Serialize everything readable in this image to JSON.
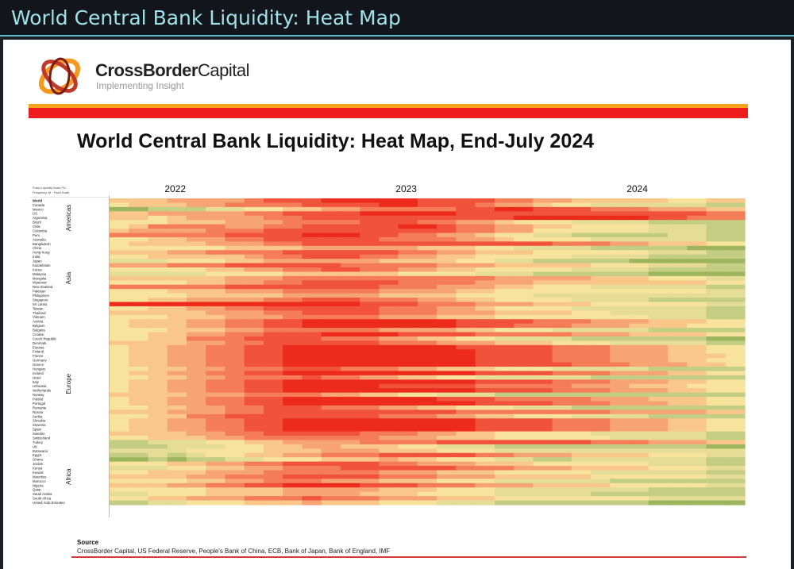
{
  "window": {
    "title": "World Central Bank Liquidity: Heat Map"
  },
  "brand": {
    "name_bold": "CrossBorder",
    "name_light": "Capital",
    "tagline": "Implementing Insight"
  },
  "colors": {
    "accent_orange": "#f6a21c",
    "accent_red": "#ee1c1c",
    "title_bar": "#12161b",
    "title_text": "#9fe1ea"
  },
  "source": {
    "heading": "Source",
    "text": "CrossBorder Capital, US Federal Reserve, People's Bank of China, ECB, Bank of Japan, Bank of England, IMF"
  },
  "chart_data": {
    "type": "heatmap",
    "title": "World Central Bank Liquidity: Heat Map, End-July 2024",
    "legend_note": [
      "Policy Liquidity Index PLI",
      "Frequency: M · Fixed Scale"
    ],
    "x_labels": [
      {
        "label": "2022",
        "col": 3
      },
      {
        "label": "2023",
        "col": 15
      },
      {
        "label": "2024",
        "col": 27
      }
    ],
    "scale": "0 = dark green (low) … 9 = deep red (high)",
    "color_scale": [
      "#7c9f45",
      "#9db55c",
      "#c3cd84",
      "#e5dc98",
      "#f8e39c",
      "#f9c78a",
      "#f7a474",
      "#f47c57",
      "#f0533a",
      "#ec2b1c"
    ],
    "regions": [
      {
        "name": "Americas",
        "start": 0,
        "end": 8
      },
      {
        "name": "Asia",
        "start": 9,
        "end": 27
      },
      {
        "name": "Europe",
        "start": 28,
        "end": 57
      },
      {
        "name": "Africa",
        "start": 58,
        "end": 70
      }
    ],
    "rows": [
      {
        "name": "World",
        "values": "555666678889999988887766555554455"
      },
      {
        "name": "Canada",
        "values": "455566777788889988876654433333322"
      },
      {
        "name": "Mexico",
        "values": "112223344556677777889988877766655"
      },
      {
        "name": "US",
        "values": "556666677888899999888888888888877"
      },
      {
        "name": "Argentina",
        "values": "554566667788888888888999999988777"
      },
      {
        "name": "Brazil",
        "values": "444555666777788877665444333322222"
      },
      {
        "name": "Chile",
        "values": "457777667788888998776655444433322"
      },
      {
        "name": "Colombia",
        "values": "566667778888888888776644444433322"
      },
      {
        "name": "Peru",
        "values": "777777888899988776654433222223322"
      },
      {
        "name": "Australia",
        "values": "445566778888887777665444433333322"
      },
      {
        "name": "Bangladesh",
        "values": "455556667788888888888887776655544"
      },
      {
        "name": "China",
        "values": "444444555566666655544333322222111"
      },
      {
        "name": "Hong Kong",
        "values": "555667777888888776655544444433322"
      },
      {
        "name": "India",
        "values": "445555567788877665544444333322222"
      },
      {
        "name": "Japan",
        "values": "333444556666665555443322222111111"
      },
      {
        "name": "Kazakhstan",
        "values": "666777888888777776665555544433322"
      },
      {
        "name": "Korea",
        "values": "444445566778877665544444333322222"
      },
      {
        "name": "Malaysia",
        "values": "333334444555555444433322222211111"
      },
      {
        "name": "Mongolia",
        "values": "555555666777777777776666655544433"
      },
      {
        "name": "Myanmar",
        "values": "444455667788888777766655555555544"
      },
      {
        "name": "New Zealand",
        "values": "777777888888887776665544433333322"
      },
      {
        "name": "Pakistan",
        "values": "444555666777776666554444444444433"
      },
      {
        "name": "Philippines",
        "values": "444455555666665555444433333333333"
      },
      {
        "name": "Singapore",
        "values": "445566667788877766554444333322222"
      },
      {
        "name": "Sri Lanka",
        "values": "999999999999988877766655544444433"
      },
      {
        "name": "Taiwan",
        "values": "445566778888887776654444333333322"
      },
      {
        "name": "Thailand",
        "values": "555556667788887776665555443333322"
      },
      {
        "name": "Vietnam",
        "values": "444555666777776665554444444433322"
      },
      {
        "name": "Austria",
        "values": "455566778899999999888877766655544"
      },
      {
        "name": "Belgium",
        "values": "455566778899999999888777666555444"
      },
      {
        "name": "Bulgaria",
        "values": "444555667777776666554443333322222"
      },
      {
        "name": "Croatia",
        "values": "445566778889999888877777666555544"
      },
      {
        "name": "Czech Republic",
        "values": "445577788887776655443333222222211"
      },
      {
        "name": "Denmark",
        "values": "555566778888887776665554443333322"
      },
      {
        "name": "Estonia",
        "values": "455667788999999999888887776665544"
      },
      {
        "name": "Finland",
        "values": "455667788999999999988887776665544"
      },
      {
        "name": "France",
        "values": "455667788999999999988887776665554"
      },
      {
        "name": "Germany",
        "values": "455667788999999999988887776665544"
      },
      {
        "name": "Greece",
        "values": "455667788999999999988888777666554"
      },
      {
        "name": "Hungary",
        "values": "445566777888777665554443333322222"
      },
      {
        "name": "Iceland",
        "values": "455667788999999999988887776665544"
      },
      {
        "name": "Israel",
        "values": "445566777787766554433333322222222"
      },
      {
        "name": "Italy",
        "values": "455667788999999999988887776665544"
      },
      {
        "name": "Lithuania",
        "values": "455667788999998888877777666555444"
      },
      {
        "name": "Netherlands",
        "values": "455667788999999999988887776665544"
      },
      {
        "name": "Norway",
        "values": "555566677776655443332222222222222"
      },
      {
        "name": "Poland",
        "values": "455667788999999998887777766655544"
      },
      {
        "name": "Portugal",
        "values": "455667788999999999988887776665544"
      },
      {
        "name": "Romania",
        "values": "445566778887776655444333222222222"
      },
      {
        "name": "Russia",
        "values": "555666778888888888777777776666655"
      },
      {
        "name": "Serbia",
        "values": "445577888888887776655444333322222"
      },
      {
        "name": "Slovakia",
        "values": "455667788999999999988887776665544"
      },
      {
        "name": "Slovenia",
        "values": "455667788999999999988887776665544"
      },
      {
        "name": "Spain",
        "values": "455667788999999999988887776665544"
      },
      {
        "name": "Sweden",
        "values": "555566778888877766554444433333322"
      },
      {
        "name": "Switzerland",
        "values": "445556677777776665554444443333322"
      },
      {
        "name": "Turkey",
        "values": "223334455666677778888888877766655"
      },
      {
        "name": "UK",
        "values": "222333445566555443332222222222211"
      },
      {
        "name": "Botswana",
        "values": "333344445556665554443333333333333"
      },
      {
        "name": "Egypt",
        "values": "223234455667778888877666555544433"
      },
      {
        "name": "Ghana",
        "values": "112122334445556554443322333333322"
      },
      {
        "name": "Jordan",
        "values": "444556677888887766655544444433322"
      },
      {
        "name": "Kenya",
        "values": "333445566777888888777666555544433"
      },
      {
        "name": "Kuwait",
        "values": "445556667777776665554444433333322"
      },
      {
        "name": "Mauritius",
        "values": "555566777888887776665555544444433"
      },
      {
        "name": "Morocco",
        "values": "444455667776665554443333332222222"
      },
      {
        "name": "Nigeria",
        "values": "555667788999988877766655554444433"
      },
      {
        "name": "Qatar",
        "values": "444445555666665554443333333322222"
      },
      {
        "name": "Saudi Arabia",
        "values": "334445555666655544443333322222222"
      },
      {
        "name": "South Africa",
        "values": "445566677787776665554444444433333"
      },
      {
        "name": "United Arab Emirates",
        "values": "223344455565554443332222222211111"
      }
    ]
  }
}
